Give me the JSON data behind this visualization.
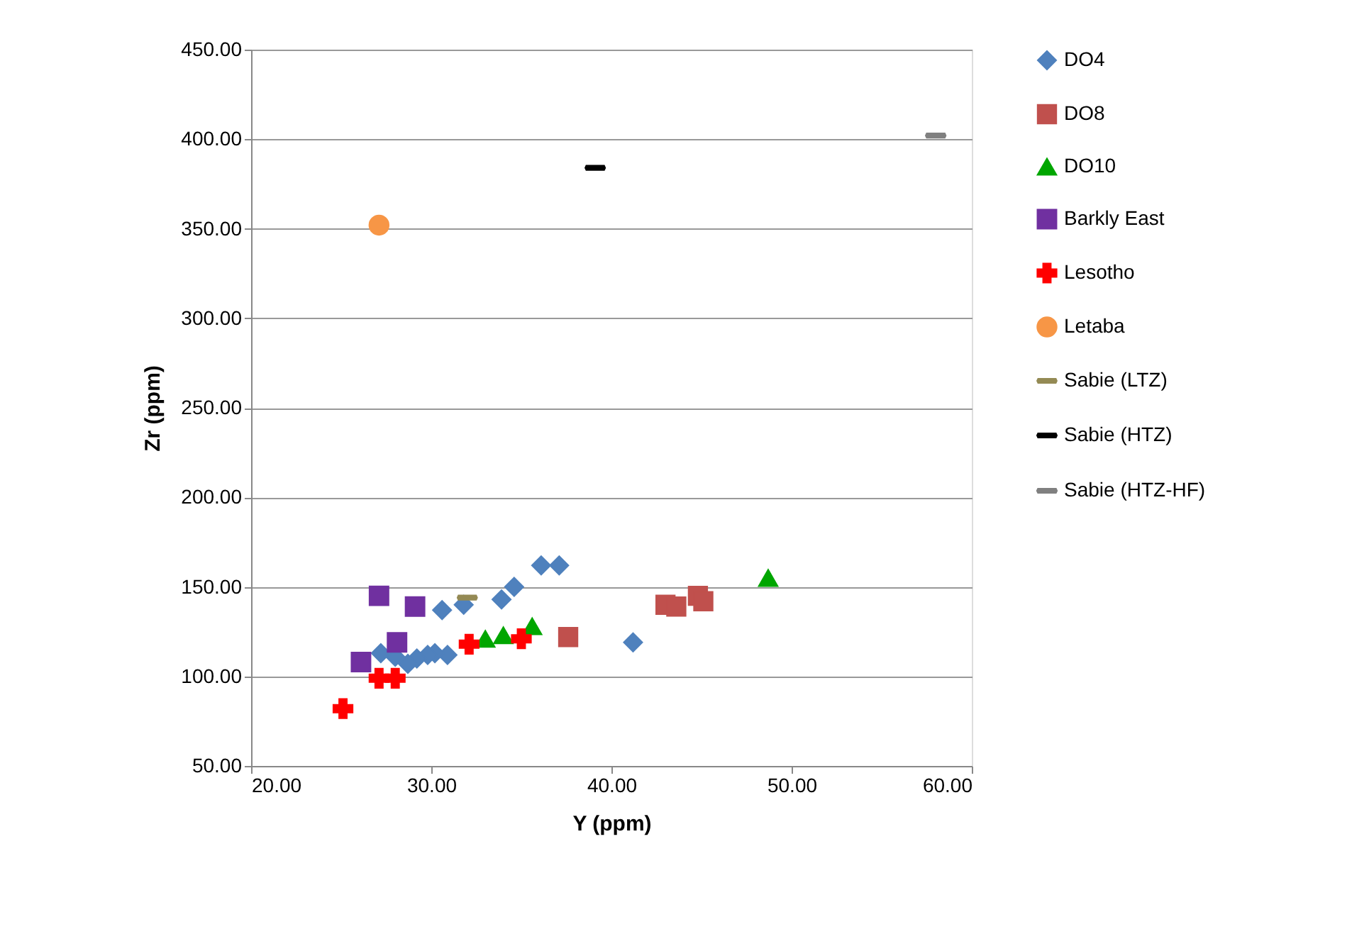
{
  "chart_data": {
    "type": "scatter",
    "xlabel": "Y (ppm)",
    "ylabel": "Zr (ppm)",
    "xlim": [
      20,
      60
    ],
    "xticks": [
      {
        "value": 20,
        "label": "20.00"
      },
      {
        "value": 30,
        "label": "30.00"
      },
      {
        "value": 40,
        "label": "40.00"
      },
      {
        "value": 50,
        "label": "50.00"
      },
      {
        "value": 60,
        "label": "60.00"
      }
    ],
    "ylim": [
      50,
      450
    ],
    "yticks": [
      {
        "value": 50,
        "label": "50.00"
      },
      {
        "value": 100,
        "label": "100.00"
      },
      {
        "value": 150,
        "label": "150.00"
      },
      {
        "value": 200,
        "label": "200.00"
      },
      {
        "value": 250,
        "label": "250.00"
      },
      {
        "value": 300,
        "label": "300.00"
      },
      {
        "value": 350,
        "label": "350.00"
      },
      {
        "value": 400,
        "label": "400.00"
      },
      {
        "value": 450,
        "label": "450.00"
      }
    ],
    "grid": "y",
    "legend": "right",
    "series": [
      {
        "name": "DO4",
        "color": "#4f81bd",
        "marker": "diamond",
        "x": [
          36.1,
          37.1,
          34.6,
          33.9,
          31.8,
          30.6,
          41.2,
          30.9,
          30.2,
          29.8,
          29.2,
          28.7,
          28.0,
          27.2
        ],
        "values": [
          162,
          162,
          150,
          143,
          140,
          137,
          119,
          112,
          113,
          112,
          110,
          107,
          111,
          113
        ]
      },
      {
        "name": "DO8",
        "color": "#c0504d",
        "marker": "square",
        "x": [
          37.6,
          43.0,
          43.6,
          44.8,
          45.1
        ],
        "values": [
          122,
          140,
          139,
          145,
          142
        ]
      },
      {
        "name": "DO10",
        "color": "#00a600",
        "marker": "triangle",
        "x": [
          33.0,
          34.0,
          35.6,
          48.7
        ],
        "values": [
          121,
          123,
          128,
          155
        ]
      },
      {
        "name": "Barkly East",
        "color": "#7030a0",
        "marker": "square",
        "x": [
          27.1,
          29.1,
          28.1,
          26.1
        ],
        "values": [
          145,
          139,
          119,
          108
        ]
      },
      {
        "name": "Lesotho",
        "color": "#ff0000",
        "marker": "cross",
        "x": [
          25.1,
          27.1,
          28.0,
          32.1,
          35.0
        ],
        "values": [
          82,
          99,
          99,
          118,
          121
        ]
      },
      {
        "name": "Letaba",
        "color": "#f79646",
        "marker": "circle",
        "x": [
          27.1
        ],
        "values": [
          352
        ]
      },
      {
        "name": "Sabie (LTZ)",
        "color": "#948a54",
        "x": [
          32.0
        ],
        "values": [
          144
        ]
      },
      {
        "name": "Sabie (HTZ)",
        "color": "#000000",
        "x": [
          39.1
        ],
        "values": [
          384
        ]
      },
      {
        "name": "Sabie (HTZ-HF)",
        "color": "#808080",
        "x": [
          58.0
        ],
        "values": [
          402
        ]
      }
    ]
  }
}
